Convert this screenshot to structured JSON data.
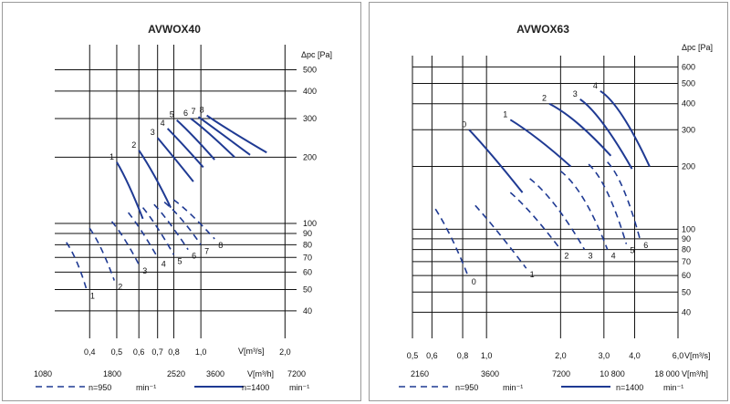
{
  "chart_data": [
    {
      "type": "line",
      "title": "AVWOX40",
      "ylabel": "Δpc [Pa]",
      "xlabel_m3s": "V[m³/s]",
      "xlabel_m3h": "V[m³/h]",
      "x_ticks_m3s": [
        "0,4",
        "0,5",
        "0,6",
        "0,7",
        "0,8",
        "1,0",
        "2,0"
      ],
      "x_ticks_m3h": [
        "1080",
        "1800",
        "2520",
        "3600",
        "7200"
      ],
      "y_ticks": [
        "500",
        "400",
        "300",
        "200",
        "100",
        "90",
        "80",
        "70",
        "60",
        "50",
        "40"
      ],
      "legend": [
        {
          "style": "dash",
          "text": "n=950",
          "unit": "min⁻¹"
        },
        {
          "style": "solid",
          "text": "n=1400",
          "unit": "min⁻¹"
        }
      ],
      "series_1400": [
        {
          "name": "1",
          "points": [
            [
              0.5,
              190
            ],
            [
              0.55,
              155
            ],
            [
              0.62,
              105
            ]
          ]
        },
        {
          "name": "2",
          "points": [
            [
              0.6,
              215
            ],
            [
              0.68,
              170
            ],
            [
              0.78,
              118
            ]
          ]
        },
        {
          "name": "3",
          "points": [
            [
              0.7,
              245
            ],
            [
              0.8,
              200
            ],
            [
              0.94,
              155
            ]
          ]
        },
        {
          "name": "4",
          "points": [
            [
              0.76,
              270
            ],
            [
              0.86,
              230
            ],
            [
              1.02,
              180
            ]
          ]
        },
        {
          "name": "5",
          "points": [
            [
              0.82,
              295
            ],
            [
              0.93,
              255
            ],
            [
              1.12,
              195
            ]
          ]
        },
        {
          "name": "6",
          "points": [
            [
              0.92,
              300
            ],
            [
              1.05,
              265
            ],
            [
              1.32,
              200
            ]
          ]
        },
        {
          "name": "7",
          "points": [
            [
              0.98,
              305
            ],
            [
              1.12,
              270
            ],
            [
              1.5,
              205
            ]
          ]
        },
        {
          "name": "8",
          "points": [
            [
              1.05,
              310
            ],
            [
              1.2,
              275
            ],
            [
              1.72,
              210
            ]
          ]
        }
      ],
      "series_950": [
        {
          "name": "1",
          "points": [
            [
              0.33,
              82
            ],
            [
              0.36,
              70
            ],
            [
              0.39,
              50
            ]
          ]
        },
        {
          "name": "2",
          "points": [
            [
              0.4,
              95
            ],
            [
              0.44,
              80
            ],
            [
              0.49,
              55
            ]
          ]
        },
        {
          "name": "3",
          "points": [
            [
              0.48,
              102
            ],
            [
              0.53,
              88
            ],
            [
              0.6,
              65
            ]
          ]
        },
        {
          "name": "4",
          "points": [
            [
              0.55,
              112
            ],
            [
              0.61,
              95
            ],
            [
              0.7,
              70
            ]
          ]
        },
        {
          "name": "5",
          "points": [
            [
              0.62,
              118
            ],
            [
              0.69,
              100
            ],
            [
              0.8,
              72
            ]
          ]
        },
        {
          "name": "6",
          "points": [
            [
              0.68,
              122
            ],
            [
              0.76,
              105
            ],
            [
              0.9,
              76
            ]
          ]
        },
        {
          "name": "7",
          "points": [
            [
              0.74,
              125
            ],
            [
              0.84,
              110
            ],
            [
              1.0,
              80
            ]
          ]
        },
        {
          "name": "8",
          "points": [
            [
              0.8,
              128
            ],
            [
              0.92,
              112
            ],
            [
              1.12,
              85
            ]
          ]
        }
      ]
    },
    {
      "type": "line",
      "title": "AVWOX63",
      "ylabel": "Δpc [Pa]",
      "xlabel_m3s": "V[m³/s]",
      "xlabel_m3h": "V[m³/h]",
      "x_ticks_m3s": [
        "0,5",
        "0,6",
        "0,8",
        "1,0",
        "2,0",
        "3,0",
        "4,0",
        "6,0"
      ],
      "x_ticks_m3h": [
        "2160",
        "3600",
        "7200",
        "10 800",
        "18 000"
      ],
      "y_ticks": [
        "600",
        "500",
        "400",
        "300",
        "200",
        "100",
        "90",
        "80",
        "70",
        "60",
        "50",
        "40"
      ],
      "legend": [
        {
          "style": "dash",
          "text": "n=950",
          "unit": "min⁻¹"
        },
        {
          "style": "solid",
          "text": "n=1400",
          "unit": "min⁻¹"
        }
      ],
      "series_1400": [
        {
          "name": "0",
          "points": [
            [
              0.85,
              300
            ],
            [
              1.05,
              230
            ],
            [
              1.4,
              150
            ]
          ]
        },
        {
          "name": "1",
          "points": [
            [
              1.25,
              335
            ],
            [
              1.6,
              280
            ],
            [
              2.2,
              200
            ]
          ]
        },
        {
          "name": "2",
          "points": [
            [
              1.8,
              400
            ],
            [
              2.3,
              345
            ],
            [
              3.2,
              225
            ]
          ]
        },
        {
          "name": "3",
          "points": [
            [
              2.4,
              420
            ],
            [
              2.9,
              360
            ],
            [
              3.9,
              195
            ]
          ]
        },
        {
          "name": "4",
          "points": [
            [
              2.9,
              460
            ],
            [
              3.5,
              400
            ],
            [
              4.6,
              200
            ]
          ]
        }
      ],
      "series_950": [
        {
          "name": "0",
          "points": [
            [
              0.62,
              125
            ],
            [
              0.72,
              95
            ],
            [
              0.84,
              60
            ]
          ]
        },
        {
          "name": "1",
          "points": [
            [
              0.9,
              130
            ],
            [
              1.1,
              100
            ],
            [
              1.45,
              65
            ]
          ]
        },
        {
          "name": "2",
          "points": [
            [
              1.25,
              150
            ],
            [
              1.5,
              125
            ],
            [
              2.0,
              80
            ]
          ]
        },
        {
          "name": "3",
          "points": [
            [
              1.5,
              175
            ],
            [
              1.9,
              140
            ],
            [
              2.5,
              80
            ]
          ]
        },
        {
          "name": "4",
          "points": [
            [
              2.0,
              190
            ],
            [
              2.5,
              155
            ],
            [
              3.1,
              80
            ]
          ]
        },
        {
          "name": "5",
          "points": [
            [
              2.6,
              205
            ],
            [
              3.1,
              170
            ],
            [
              3.7,
              85
            ]
          ]
        },
        {
          "name": "6",
          "points": [
            [
              3.1,
              210
            ],
            [
              3.6,
              175
            ],
            [
              4.2,
              90
            ]
          ]
        }
      ]
    }
  ]
}
